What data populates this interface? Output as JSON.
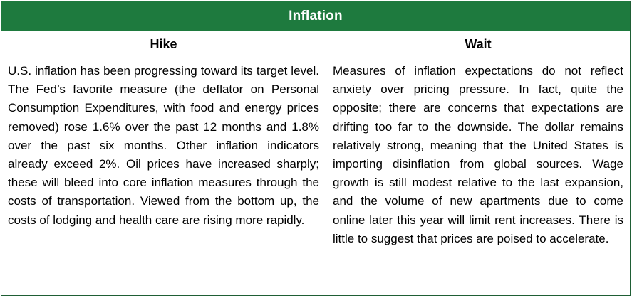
{
  "table": {
    "title": "Inflation",
    "columns": [
      {
        "heading": "Hike",
        "body": "U.S. inflation has been progressing toward its target level.  The Fed’s favorite measure (the deflator on Personal Consumption Expenditures, with food and energy prices removed) rose 1.6% over the past 12 months and 1.8% over the past six months.  Other inflation indicators already exceed 2%.  Oil prices have increased sharply; these will bleed into core inflation measures through the costs of transportation.  Viewed from the bottom up, the costs of lodging and health care are rising more rapidly."
      },
      {
        "heading": "Wait",
        "body": "Measures of inflation expectations do not reflect anxiety over pricing pressure.  In fact, quite the opposite; there are concerns that expectations are drifting too far to the downside.  The dollar remains relatively strong, meaning that the United States is importing disinflation from global sources.  Wage growth is still modest relative to the last expansion, and the volume of new apartments due to come online later this year will limit rent increases. There is little to suggest that prices are poised to accelerate."
      }
    ]
  },
  "colors": {
    "header_bg": "#1e7a3e",
    "header_text": "#ffffff",
    "border": "#1f5e35"
  }
}
